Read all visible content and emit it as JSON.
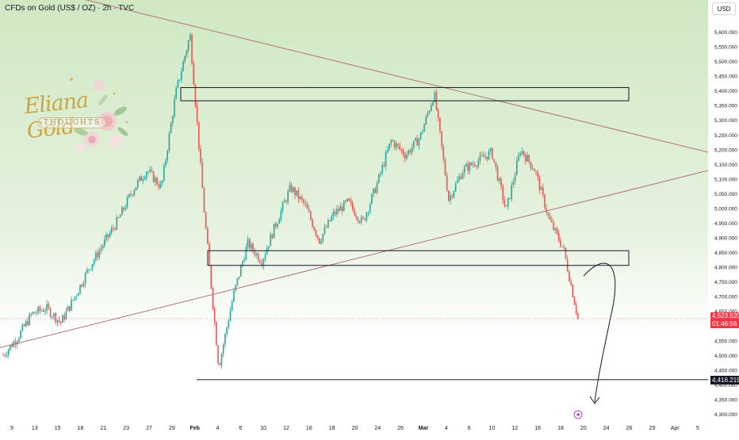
{
  "header": {
    "symbol_title": "CFDs on Gold (US$ / OZ) · 2h · TVC",
    "currency": "USD"
  },
  "logo": {
    "name": "Eliana Gold",
    "subtitle": "THOUGHTS"
  },
  "badges": {
    "current_price": "4,623.620",
    "countdown": "01:46:56",
    "target_price": "4,416.219"
  },
  "colors": {
    "up": "#26a69a",
    "down": "#ef5350",
    "trendline": "#b2707b",
    "current_badge": "#f23645",
    "target_badge": "#131722",
    "bg_green": "#cfe8c2"
  },
  "chart_data": {
    "type": "candlestick",
    "instrument": "CFDs on Gold (US$ / OZ)",
    "timeframe": "2h",
    "y_axis": {
      "ticks": [
        4300000,
        4350000,
        4400000,
        4450000,
        4500000,
        4550000,
        4600000,
        4650000,
        4700000,
        4750000,
        4800000,
        4850000,
        4900000,
        4950000,
        5000000,
        5050000,
        5100000,
        5150000,
        5200000,
        5250000,
        5300000,
        5350000,
        5400000,
        5450000,
        5500000,
        5550000,
        5600000
      ],
      "tick_labels": [
        "4,300.000",
        "4,350.000",
        "4,400.000",
        "4,450.000",
        "4,500.000",
        "4,550.000",
        "4,600.000",
        "4,650.000",
        "4,700.000",
        "4,750.000",
        "4,800.000",
        "4,850.000",
        "4,900.000",
        "4,950.000",
        "5,000.000",
        "5,050.000",
        "5,100.000",
        "5,150.000",
        "5,200.000",
        "5,250.000",
        "5,300.000",
        "5,350.000",
        "5,400.000",
        "5,450.000",
        "5,500.000",
        "5,550.000",
        "5,600.000"
      ],
      "range": [
        4280,
        5640
      ]
    },
    "x_axis": {
      "tick_labels": [
        "9",
        "13",
        "15",
        "18",
        "21",
        "23",
        "27",
        "29",
        "Feb",
        "4",
        "6",
        "10",
        "12",
        "16",
        "18",
        "20",
        "24",
        "26",
        "Mar",
        "4",
        "6",
        "10",
        "12",
        "16",
        "18",
        "20",
        "24",
        "26",
        "29",
        "Apr",
        "5"
      ],
      "bold_labels": [
        "Feb",
        "Mar"
      ]
    },
    "closes": [
      4500,
      4560,
      4640,
      4660,
      4610,
      4700,
      4800,
      4880,
      4960,
      5060,
      5130,
      5070,
      5390,
      5590,
      4980,
      4460,
      4700,
      4880,
      4820,
      4950,
      5070,
      5010,
      4890,
      4980,
      5020,
      4950,
      5080,
      5230,
      5180,
      5240,
      5390,
      5030,
      5130,
      5160,
      5190,
      4990,
      5200,
      5130,
      4960,
      4860,
      4623.62
    ],
    "current_price": 4623.62,
    "target_level": 4416.219,
    "zones": [
      {
        "top": 5410,
        "bottom": 5365
      },
      {
        "top": 4855,
        "bottom": 4805
      }
    ],
    "watermark_icon": "lightning-icon"
  }
}
